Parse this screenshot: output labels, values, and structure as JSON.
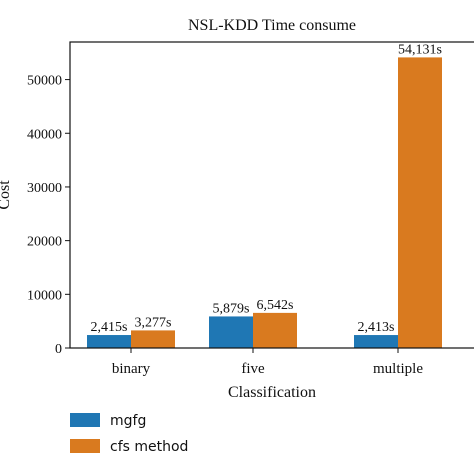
{
  "chart_data": {
    "type": "bar",
    "title": "NSL-KDD Time consume",
    "xlabel": "Classification",
    "ylabel": "Cost",
    "categories": [
      "binary",
      "five",
      "multiple"
    ],
    "series": [
      {
        "name": "mgfg",
        "values": [
          2415,
          5879,
          2413
        ],
        "labels": [
          "2,415s",
          "5,879s",
          "2,413s"
        ],
        "color": "#1f77b4"
      },
      {
        "name": "cfs method",
        "values": [
          3277,
          6542,
          54131
        ],
        "labels": [
          "3,277s",
          "6,542s",
          "54,131s"
        ],
        "color": "#d97a1f"
      }
    ],
    "ylim": [
      0,
      57000
    ],
    "yticks": [
      0,
      10000,
      20000,
      30000,
      40000,
      50000
    ],
    "ytick_labels": [
      "0",
      "10000",
      "20000",
      "30000",
      "40000",
      "50000"
    ],
    "grid": false,
    "legend_position": "bottom-left"
  }
}
